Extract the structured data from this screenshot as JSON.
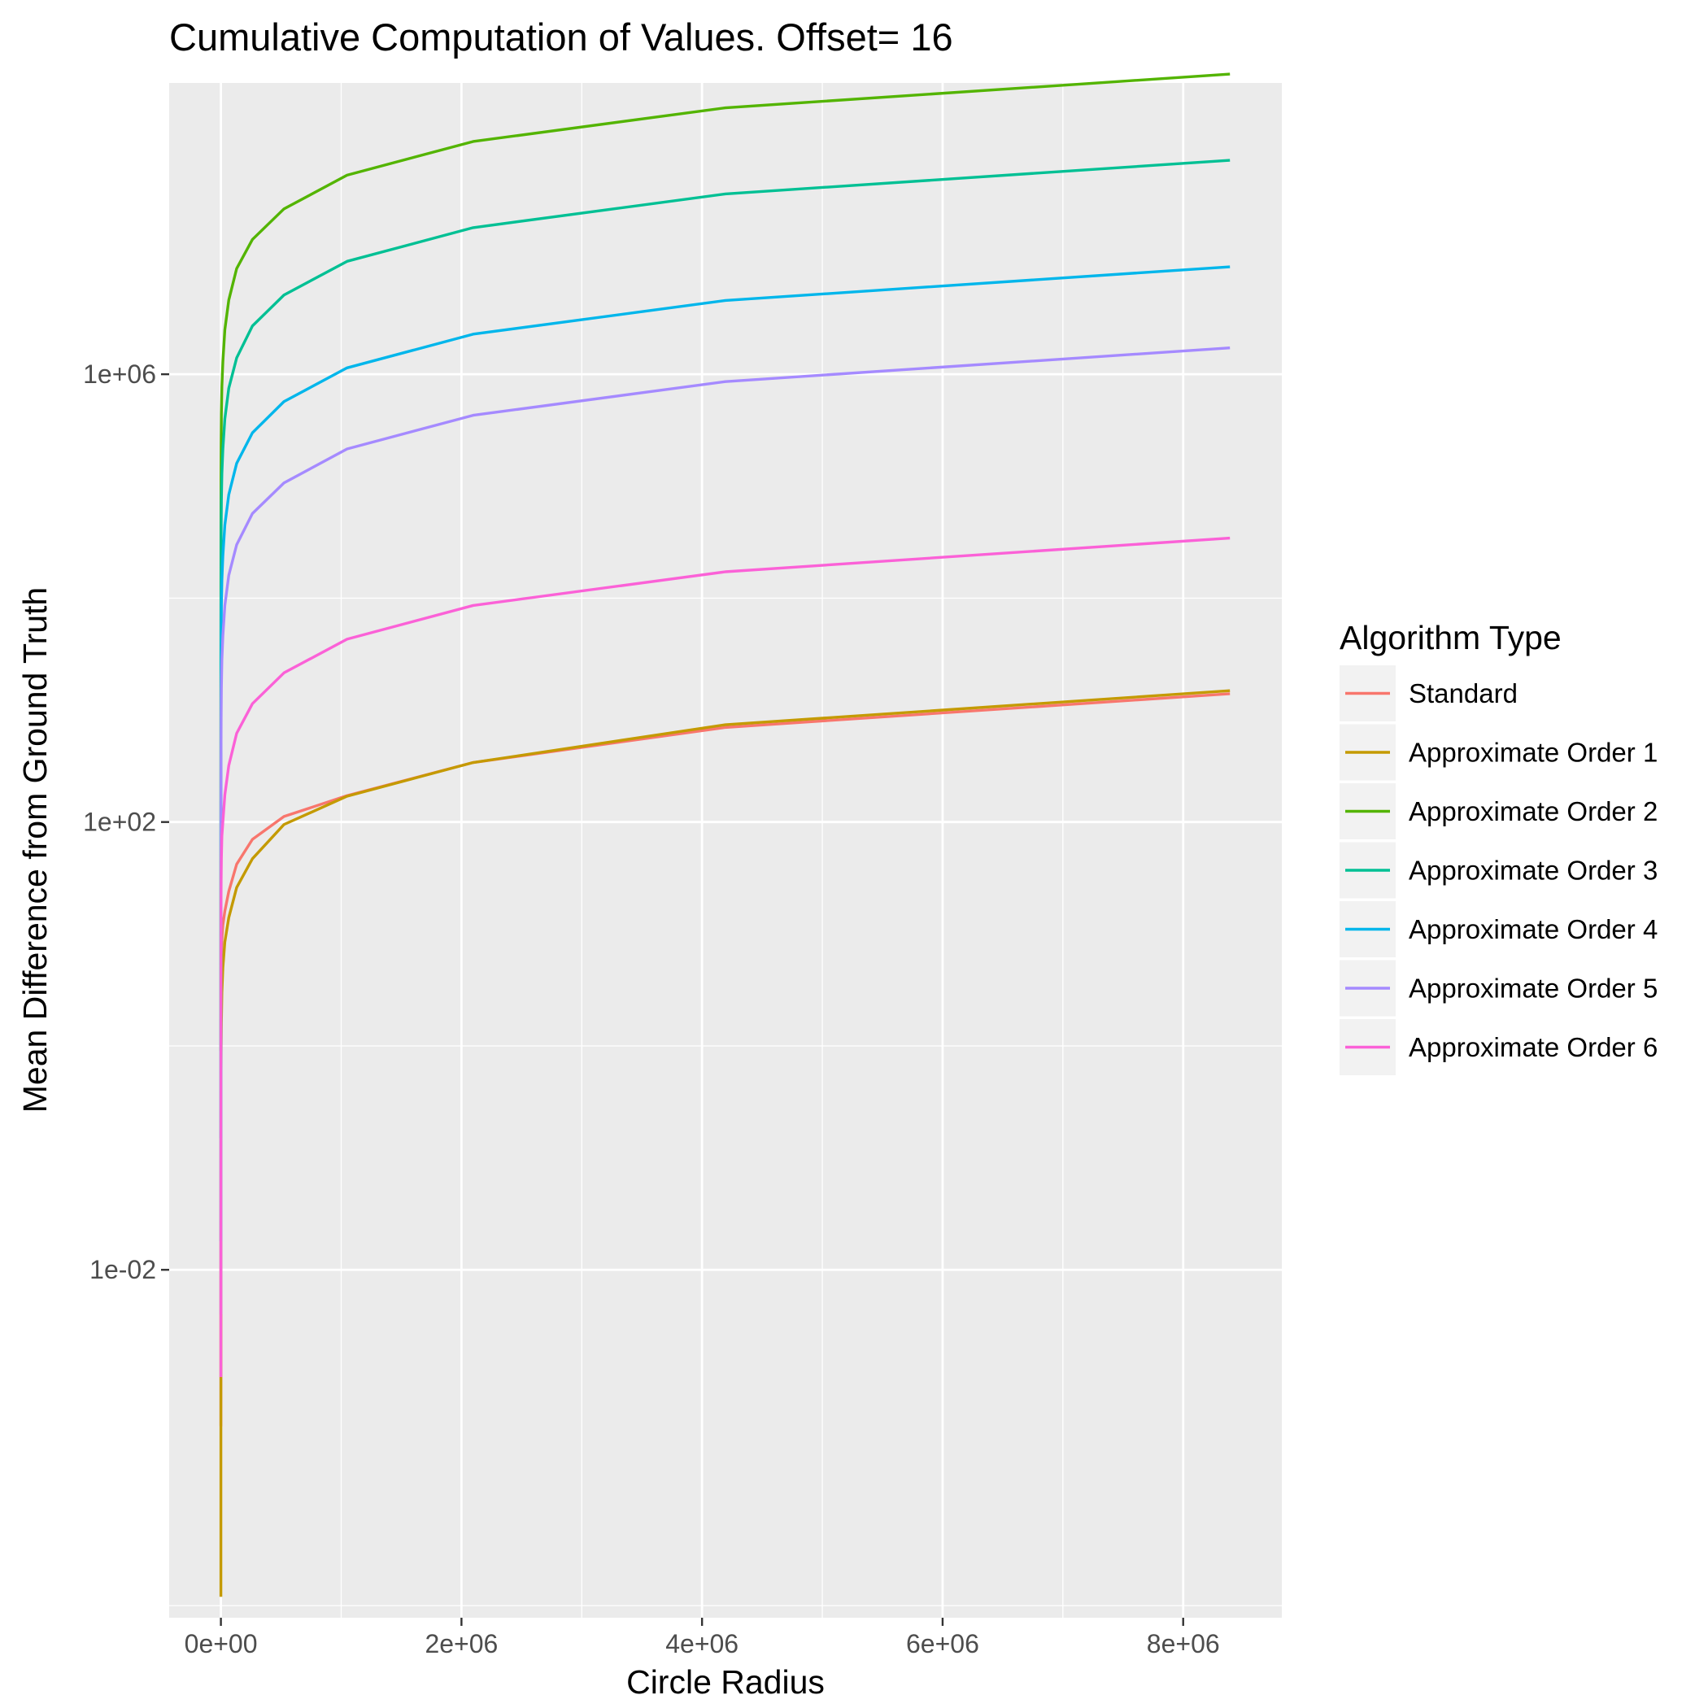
{
  "chart_data": {
    "type": "line",
    "title": "Cumulative Computation of Values. Offset= 16",
    "xlabel": "Circle Radius",
    "ylabel": "Mean Difference from Ground Truth",
    "y_scale": "log10",
    "x_ticks": [
      0,
      2000000,
      4000000,
      6000000,
      8000000
    ],
    "x_tick_labels": [
      "0e+00",
      "2e+06",
      "4e+06",
      "6e+06",
      "8e+06"
    ],
    "y_ticks": [
      0.01,
      100,
      1000000
    ],
    "y_tick_labels": [
      "1e-02",
      "1e+02",
      "1e+06"
    ],
    "xlim": [
      -430000,
      8820000
    ],
    "ylim": [
      7.8e-06,
      400000000
    ],
    "grid": true,
    "legend": {
      "title": "Algorithm Type",
      "position": "right"
    },
    "x": [
      1,
      2,
      4,
      8,
      16,
      32,
      64,
      128,
      256,
      512,
      1024,
      2048,
      4096,
      8192,
      16384,
      32768,
      65536,
      131072,
      262144,
      524288,
      1048576,
      2097152,
      4194304,
      8388608
    ],
    "series": [
      {
        "name": "Standard",
        "color": "#F8766D",
        "values": [
          0.0004,
          0.0011,
          0.003,
          0.008,
          0.02,
          0.05,
          0.12,
          0.3,
          0.7,
          1.6,
          2.8,
          4.2,
          6.2,
          8.8,
          12,
          16,
          24,
          42,
          70,
          112,
          172,
          340,
          700,
          1400
        ]
      },
      {
        "name": "Approximate Order 1",
        "color": "#C49A00",
        "values": [
          1.2e-05,
          4e-05,
          0.00012,
          0.0004,
          0.0012,
          0.004,
          0.012,
          0.035,
          0.09,
          0.2,
          0.45,
          0.9,
          1.6,
          3,
          5,
          8.5,
          14,
          26,
          47,
          95,
          170,
          340,
          740,
          1490
        ]
      },
      {
        "name": "Approximate Order 2",
        "color": "#53B400",
        "values": [
          0.9,
          3,
          10,
          35,
          120,
          400,
          1300,
          4000,
          12000,
          40000,
          110000,
          240000,
          450000,
          780000,
          1300000,
          2500000,
          4600000,
          8800000,
          16000000,
          30000000,
          60000000,
          120000000,
          240000000,
          480000000
        ]
      },
      {
        "name": "Approximate Order 3",
        "color": "#00C094",
        "values": [
          0.15,
          0.5,
          1.6,
          5,
          18,
          60,
          200,
          650,
          2000,
          6500,
          18000,
          40000,
          75000,
          130000,
          215000,
          400000,
          750000,
          1400000,
          2700000,
          5100000,
          10200000,
          20400000,
          40800000,
          81600000
        ]
      },
      {
        "name": "Approximate Order 4",
        "color": "#00B6EB",
        "values": [
          0.018,
          0.06,
          0.2,
          0.65,
          2.2,
          7,
          23,
          75,
          230,
          750,
          2000,
          4500,
          8500,
          14500,
          24000,
          45000,
          84000,
          160000,
          300000,
          570000,
          1140000,
          2280000,
          4560000,
          9120000
        ]
      },
      {
        "name": "Approximate Order 5",
        "color": "#A58AFF",
        "values": [
          0.004,
          0.012,
          0.04,
          0.13,
          0.45,
          1.4,
          4.5,
          15,
          46,
          140,
          380,
          850,
          1600,
          2800,
          4600,
          8600,
          16000,
          30000,
          57000,
          107000,
          215000,
          430000,
          860000,
          1720000
        ]
      },
      {
        "name": "Approximate Order 6",
        "color": "#FB61D7",
        "values": [
          0.0011,
          0.003,
          0.009,
          0.025,
          0.07,
          0.2,
          0.55,
          1.5,
          4,
          9,
          18,
          30,
          48,
          75,
          100,
          175,
          320,
          620,
          1140,
          2150,
          4300,
          8600,
          17200,
          34400
        ]
      }
    ]
  }
}
